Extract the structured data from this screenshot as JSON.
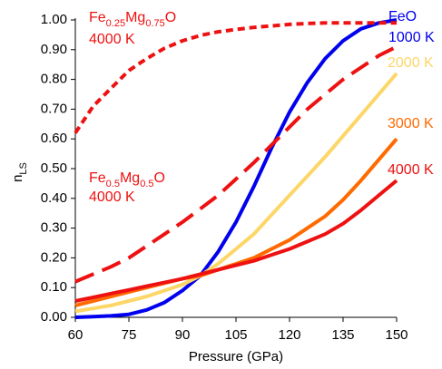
{
  "chart_data": {
    "type": "line",
    "x_label": "Pressure (GPa)",
    "y_label_parts": [
      "n",
      "LS"
    ],
    "x": [
      60,
      65,
      70,
      75,
      80,
      85,
      90,
      95,
      100,
      105,
      110,
      115,
      120,
      125,
      130,
      135,
      140,
      145,
      150
    ],
    "series": [
      {
        "name": "1000 K",
        "composition": [
          "FeO"
        ],
        "color": "#0000ee",
        "dash": "solid",
        "values": [
          0.0,
          0.002,
          0.005,
          0.01,
          0.025,
          0.05,
          0.09,
          0.14,
          0.22,
          0.32,
          0.44,
          0.57,
          0.69,
          0.79,
          0.87,
          0.93,
          0.97,
          0.99,
          1.0
        ]
      },
      {
        "name": "2000 K",
        "color": "#fcd666",
        "dash": "solid",
        "values": [
          0.02,
          0.03,
          0.04,
          0.055,
          0.07,
          0.09,
          0.11,
          0.14,
          0.18,
          0.23,
          0.28,
          0.345,
          0.41,
          0.475,
          0.54,
          0.61,
          0.68,
          0.75,
          0.82
        ]
      },
      {
        "name": "3000 K",
        "color": "#ff6a00",
        "dash": "solid",
        "values": [
          0.04,
          0.055,
          0.07,
          0.085,
          0.1,
          0.115,
          0.13,
          0.14,
          0.16,
          0.18,
          0.2,
          0.23,
          0.26,
          0.3,
          0.34,
          0.395,
          0.46,
          0.53,
          0.6
        ]
      },
      {
        "name": "4000 K",
        "color": "#ee1111",
        "dash": "solid",
        "values": [
          0.055,
          0.067,
          0.08,
          0.092,
          0.105,
          0.117,
          0.13,
          0.145,
          0.16,
          0.175,
          0.19,
          0.21,
          0.23,
          0.255,
          0.28,
          0.315,
          0.36,
          0.41,
          0.46
        ]
      },
      {
        "name": "4000 K",
        "composition": [
          "Fe",
          "0.5",
          "Mg",
          "0.5",
          "O"
        ],
        "color": "#ee1111",
        "dash": "dashed",
        "values": [
          0.12,
          0.145,
          0.17,
          0.2,
          0.24,
          0.28,
          0.32,
          0.365,
          0.41,
          0.465,
          0.52,
          0.58,
          0.64,
          0.7,
          0.75,
          0.8,
          0.84,
          0.88,
          0.91
        ]
      },
      {
        "name": "4000 K",
        "composition": [
          "Fe",
          "0.25",
          "Mg",
          "0.75",
          "O"
        ],
        "color": "#ee1111",
        "dash": "dotted",
        "values": [
          0.62,
          0.71,
          0.77,
          0.83,
          0.87,
          0.905,
          0.93,
          0.948,
          0.96,
          0.968,
          0.975,
          0.98,
          0.985,
          0.988,
          0.99,
          0.99,
          0.99,
          0.99,
          0.99
        ]
      }
    ],
    "xlim": [
      60,
      150
    ],
    "xticks": [
      60,
      75,
      90,
      105,
      120,
      135,
      150
    ],
    "ylim": [
      0,
      1
    ],
    "yticks": [
      {
        "value": 0,
        "label": "0.00"
      },
      {
        "value": 0.1,
        "label": "0.10"
      },
      {
        "value": 0.2,
        "label": "0.20"
      },
      {
        "value": 0.3,
        "label": "0.30"
      },
      {
        "value": 0.4,
        "label": "0.40"
      },
      {
        "value": 0.5,
        "label": "0.50"
      },
      {
        "value": 0.6,
        "label": "0.60"
      },
      {
        "value": 0.7,
        "label": "0.70"
      },
      {
        "value": 0.8,
        "label": "0.80"
      },
      {
        "value": 0.9,
        "label": "0.90"
      },
      {
        "value": 1,
        "label": "1.00"
      }
    ],
    "grid": false
  }
}
